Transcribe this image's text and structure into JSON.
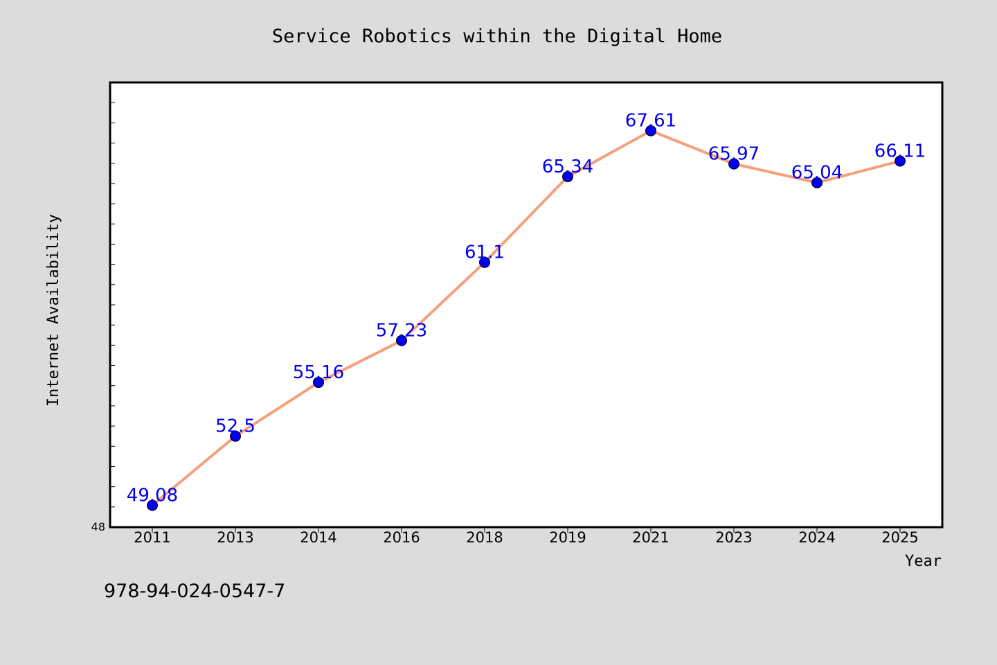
{
  "chart_data": {
    "type": "line",
    "title": "Service Robotics within the Digital Home",
    "xlabel": "Year",
    "ylabel": "Internet Availability",
    "categories": [
      "2011",
      "2013",
      "2014",
      "2016",
      "2018",
      "2019",
      "2021",
      "2023",
      "2024",
      "2025"
    ],
    "series": [
      {
        "values": [
          49.08,
          52.5,
          55.16,
          57.23,
          61.1,
          65.34,
          67.61,
          65.97,
          65.04,
          66.11
        ]
      }
    ],
    "data_labels": [
      "49.08",
      "52.5",
      "55.16",
      "57.23",
      "61.1",
      "65.34",
      "67.61",
      "65.97",
      "65.04",
      "66.11"
    ],
    "ylim": [
      48,
      70
    ],
    "y_tick_labels": [
      "48"
    ],
    "y_minor_tick_step": 1,
    "grid": false,
    "legend": "none",
    "colors": {
      "background": "#dcdcdc",
      "plot_background": "#ffffff",
      "line": "#f4a07c",
      "marker": "#0000ee",
      "data_label": "#0000ee"
    }
  },
  "footer": {
    "text": "978-94-024-0547-7"
  }
}
